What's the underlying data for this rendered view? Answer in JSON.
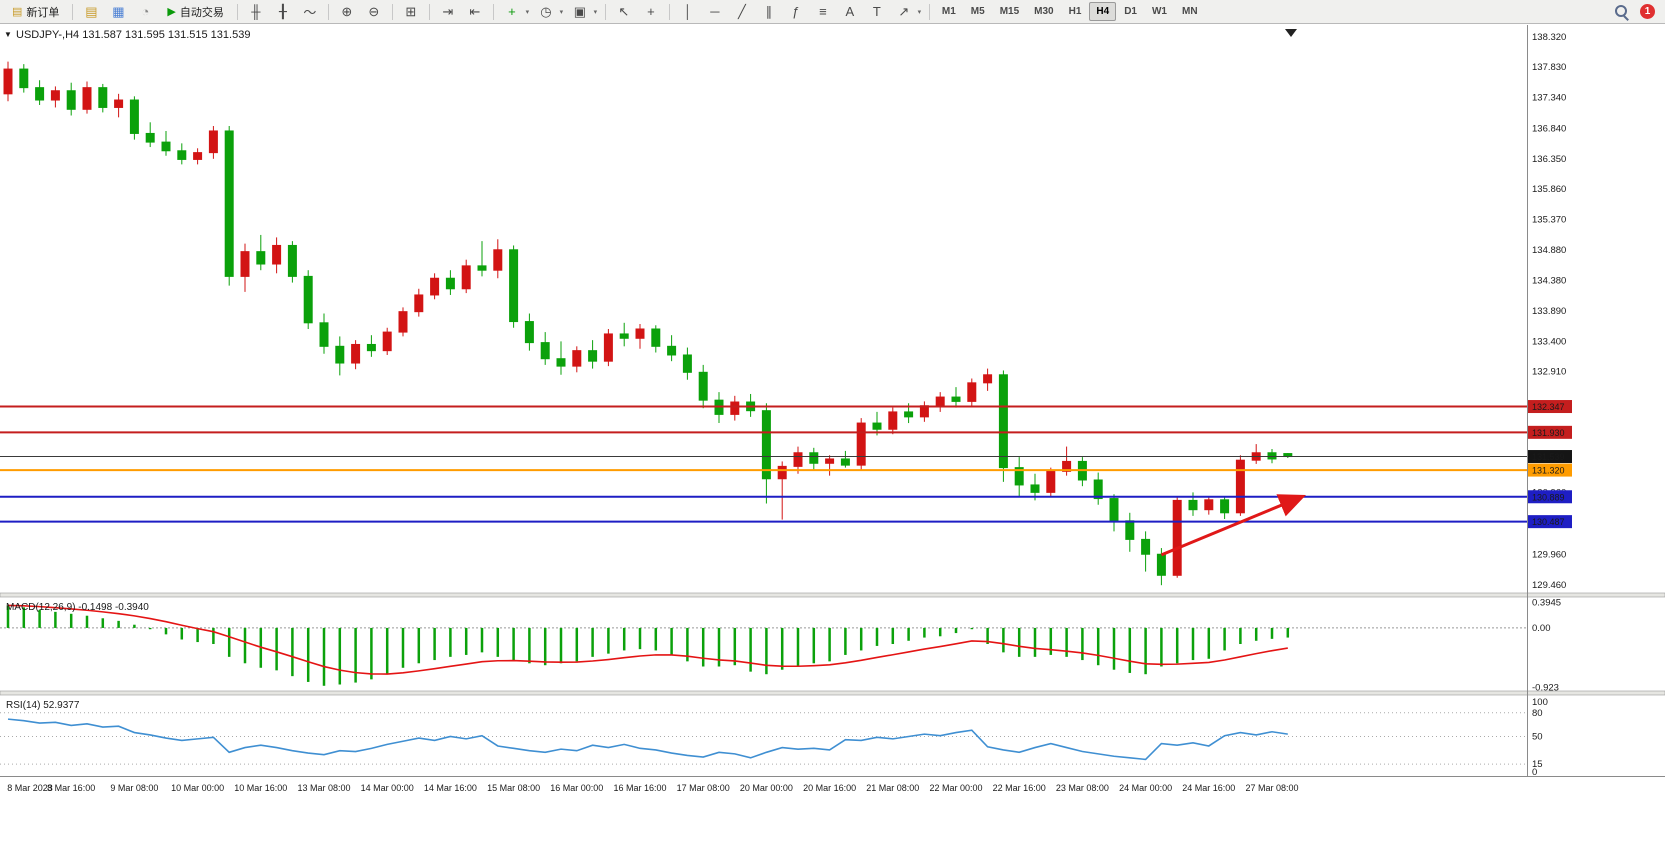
{
  "colors": {
    "bull": "#d21414",
    "bear": "#0ba10b",
    "macd_hist": "#0ba10b",
    "macd_signal": "#e41414",
    "rsi_line": "#3f8fd2",
    "resistance": "#c41e1e",
    "support": "#1e1ec4",
    "pivot": "#ff9c00",
    "current": "#3a3a3a"
  },
  "toolbar": {
    "new_order_label": "新订单",
    "autotrading_label": "自动交易",
    "timeframes": [
      "M1",
      "M5",
      "M15",
      "M30",
      "H1",
      "H4",
      "D1",
      "W1",
      "MN"
    ],
    "active_timeframe": "H4",
    "notification_count": "1",
    "items": [
      {
        "type": "button",
        "name": "new-order-button",
        "icon": "new-order-icon",
        "glyph": "▤",
        "glyphColor": "#c89b2a",
        "labelKey": "new_order_label"
      },
      {
        "type": "sep"
      },
      {
        "type": "icon",
        "name": "new-chart-icon",
        "glyph": "▤",
        "color": "#c89b2a"
      },
      {
        "type": "icon",
        "name": "profiles-icon",
        "glyph": "▦",
        "color": "#4a7fd4"
      },
      {
        "type": "icon",
        "name": "refresh-icon",
        "glyph": "◔",
        "color": "#8a8a8a"
      },
      {
        "type": "button",
        "name": "autotrading-button",
        "icon": "autotrading-play-icon",
        "glyph": "▶",
        "glyphColor": "#0a9a0a",
        "labelKey": "autotrading_label"
      },
      {
        "type": "sep"
      },
      {
        "type": "icon",
        "name": "bar-chart-icon",
        "glyph": "╫"
      },
      {
        "type": "icon",
        "name": "candlestick-chart-icon",
        "glyph": "╂"
      },
      {
        "type": "icon",
        "name": "line-chart-icon",
        "glyph": "～"
      },
      {
        "type": "sep"
      },
      {
        "type": "icon",
        "name": "zoom-in-icon",
        "glyph": "⊕"
      },
      {
        "type": "icon",
        "name": "zoom-out-icon",
        "glyph": "⊖"
      },
      {
        "type": "sep"
      },
      {
        "type": "icon",
        "name": "tile-windows-icon",
        "glyph": "⊞"
      },
      {
        "type": "sep"
      },
      {
        "type": "icon",
        "name": "auto-scroll-icon",
        "glyph": "⇥"
      },
      {
        "type": "icon",
        "name": "chart-shift-icon",
        "glyph": "⇤"
      },
      {
        "type": "sep"
      },
      {
        "type": "icon",
        "name": "indicators-icon",
        "glyph": "+",
        "color": "#0a9a0a",
        "dropdown": true
      },
      {
        "type": "icon",
        "name": "periods-icon",
        "glyph": "◷",
        "dropdown": true
      },
      {
        "type": "icon",
        "name": "templates-icon",
        "glyph": "▣",
        "dropdown": true
      },
      {
        "type": "sep"
      },
      {
        "type": "icon",
        "name": "cursor-icon",
        "glyph": "↖"
      },
      {
        "type": "icon",
        "name": "crosshair-icon",
        "glyph": "+"
      },
      {
        "type": "sep"
      },
      {
        "type": "icon",
        "name": "vertical-line-icon",
        "glyph": "│"
      },
      {
        "type": "icon",
        "name": "horizontal-line-icon",
        "glyph": "─"
      },
      {
        "type": "icon",
        "name": "trendline-icon",
        "glyph": "╱"
      },
      {
        "type": "icon",
        "name": "channel-icon",
        "glyph": "∥"
      },
      {
        "type": "icon",
        "name": "fibonacci-icon",
        "glyph": "ƒ"
      },
      {
        "type": "icon",
        "name": "shapes-icon",
        "glyph": "≡"
      },
      {
        "type": "icon",
        "name": "text-icon",
        "glyph": "A"
      },
      {
        "type": "icon",
        "name": "text-label-icon",
        "glyph": "T"
      },
      {
        "type": "icon",
        "name": "arrows-tool-icon",
        "glyph": "↗",
        "dropdown": true
      },
      {
        "type": "sep"
      },
      {
        "type": "tf-group"
      },
      {
        "type": "spacer"
      },
      {
        "type": "search",
        "name": "search-icon"
      },
      {
        "type": "badge",
        "name": "notification-badge",
        "labelKey": "notification_count"
      }
    ]
  },
  "chart_data": {
    "type": "candlestick",
    "symbol": "USDJPY-",
    "timeframe": "H4",
    "title_ohlc": "131.587 131.595 131.515 131.539",
    "ylim": [
      129.35,
      138.48
    ],
    "price_axis_labels": [
      "138.320",
      "137.830",
      "137.340",
      "136.840",
      "136.350",
      "135.860",
      "135.370",
      "134.880",
      "134.380",
      "133.890",
      "133.400",
      "132.910",
      "130.960",
      "129.960",
      "129.460"
    ],
    "time_labels": [
      "8 Mar 2023",
      "8 Mar 16:00",
      "9 Mar 08:00",
      "10 Mar 00:00",
      "10 Mar 16:00",
      "13 Mar 08:00",
      "14 Mar 00:00",
      "14 Mar 16:00",
      "15 Mar 08:00",
      "16 Mar 00:00",
      "16 Mar 16:00",
      "17 Mar 08:00",
      "20 Mar 00:00",
      "20 Mar 16:00",
      "21 Mar 08:00",
      "22 Mar 00:00",
      "22 Mar 16:00",
      "23 Mar 08:00",
      "24 Mar 00:00",
      "24 Mar 16:00",
      "27 Mar 08:00"
    ],
    "hlines": [
      {
        "name": "resistance-line-1",
        "price": 132.347,
        "label": "132.347",
        "colorKey": "resistance",
        "width": 2
      },
      {
        "name": "resistance-line-2",
        "price": 131.93,
        "label": "131.930",
        "colorKey": "resistance",
        "width": 2
      },
      {
        "name": "current-price-line",
        "price": 131.539,
        "label": "131.539",
        "colorKey": "current",
        "width": 1,
        "boxColor": "#151515"
      },
      {
        "name": "pivot-line",
        "price": 131.32,
        "label": "131.320",
        "colorKey": "pivot",
        "width": 2
      },
      {
        "name": "support-line-1",
        "price": 130.889,
        "label": "130.889",
        "colorKey": "support",
        "width": 2
      },
      {
        "name": "support-line-2",
        "price": 130.487,
        "label": "130.487",
        "colorKey": "support",
        "width": 2
      }
    ],
    "arrow": {
      "from_bar": 73,
      "from_price": 129.95,
      "to_bar": 81.8,
      "to_price": 130.88,
      "color": "#e01818"
    },
    "candles": [
      [
        137.4,
        137.92,
        137.28,
        137.8
      ],
      [
        137.8,
        137.88,
        137.42,
        137.5
      ],
      [
        137.5,
        137.62,
        137.22,
        137.3
      ],
      [
        137.3,
        137.52,
        137.18,
        137.45
      ],
      [
        137.45,
        137.58,
        137.05,
        137.15
      ],
      [
        137.15,
        137.6,
        137.08,
        137.5
      ],
      [
        137.5,
        137.56,
        137.1,
        137.18
      ],
      [
        137.18,
        137.4,
        137.02,
        137.3
      ],
      [
        137.3,
        137.36,
        136.66,
        136.76
      ],
      [
        136.76,
        136.94,
        136.54,
        136.62
      ],
      [
        136.62,
        136.8,
        136.4,
        136.48
      ],
      [
        136.48,
        136.6,
        136.26,
        136.34
      ],
      [
        136.34,
        136.52,
        136.26,
        136.45
      ],
      [
        136.45,
        136.88,
        136.35,
        136.8
      ],
      [
        136.8,
        136.88,
        134.3,
        134.45
      ],
      [
        134.45,
        134.98,
        134.2,
        134.85
      ],
      [
        134.85,
        135.12,
        134.55,
        134.65
      ],
      [
        134.65,
        135.08,
        134.5,
        134.95
      ],
      [
        134.95,
        135.02,
        134.35,
        134.45
      ],
      [
        134.45,
        134.55,
        133.6,
        133.7
      ],
      [
        133.7,
        133.85,
        133.2,
        133.32
      ],
      [
        133.32,
        133.48,
        132.85,
        133.05
      ],
      [
        133.05,
        133.42,
        132.95,
        133.35
      ],
      [
        133.35,
        133.5,
        133.15,
        133.25
      ],
      [
        133.25,
        133.62,
        133.18,
        133.55
      ],
      [
        133.55,
        133.95,
        133.48,
        133.88
      ],
      [
        133.88,
        134.25,
        133.8,
        134.15
      ],
      [
        134.15,
        134.5,
        134.08,
        134.42
      ],
      [
        134.42,
        134.55,
        134.15,
        134.25
      ],
      [
        134.25,
        134.72,
        134.18,
        134.62
      ],
      [
        134.62,
        135.02,
        134.45,
        134.55
      ],
      [
        134.55,
        135.05,
        134.42,
        134.88
      ],
      [
        134.88,
        134.95,
        133.62,
        133.72
      ],
      [
        133.72,
        133.85,
        133.25,
        133.38
      ],
      [
        133.38,
        133.55,
        133.02,
        133.12
      ],
      [
        133.12,
        133.4,
        132.86,
        133.0
      ],
      [
        133.0,
        133.32,
        132.9,
        133.25
      ],
      [
        133.25,
        133.42,
        132.96,
        133.08
      ],
      [
        133.08,
        133.6,
        133.0,
        133.52
      ],
      [
        133.52,
        133.7,
        133.32,
        133.45
      ],
      [
        133.45,
        133.68,
        133.28,
        133.6
      ],
      [
        133.6,
        133.66,
        133.22,
        133.32
      ],
      [
        133.32,
        133.5,
        133.08,
        133.18
      ],
      [
        133.18,
        133.3,
        132.78,
        132.9
      ],
      [
        132.9,
        133.02,
        132.32,
        132.45
      ],
      [
        132.45,
        132.58,
        132.08,
        132.22
      ],
      [
        132.22,
        132.52,
        132.12,
        132.42
      ],
      [
        132.42,
        132.55,
        132.18,
        132.28
      ],
      [
        132.28,
        132.4,
        130.78,
        131.18
      ],
      [
        131.18,
        131.46,
        130.52,
        131.38
      ],
      [
        131.38,
        131.7,
        131.26,
        131.6
      ],
      [
        131.6,
        131.68,
        131.33,
        131.43
      ],
      [
        131.43,
        131.56,
        131.23,
        131.5
      ],
      [
        131.5,
        131.63,
        131.36,
        131.4
      ],
      [
        131.4,
        132.16,
        131.33,
        132.08
      ],
      [
        132.08,
        132.26,
        131.88,
        131.98
      ],
      [
        131.98,
        132.33,
        131.9,
        132.26
      ],
      [
        132.26,
        132.4,
        132.08,
        132.18
      ],
      [
        132.18,
        132.43,
        132.1,
        132.36
      ],
      [
        132.36,
        132.58,
        132.26,
        132.5
      ],
      [
        132.5,
        132.66,
        132.33,
        132.43
      ],
      [
        132.43,
        132.8,
        132.36,
        132.73
      ],
      [
        132.73,
        132.96,
        132.6,
        132.86
      ],
      [
        132.86,
        132.93,
        131.13,
        131.36
      ],
      [
        131.36,
        131.53,
        130.9,
        131.08
      ],
      [
        131.08,
        131.26,
        130.83,
        130.96
      ],
      [
        130.96,
        131.36,
        130.9,
        131.3
      ],
      [
        131.3,
        131.7,
        131.23,
        131.46
      ],
      [
        131.46,
        131.53,
        131.06,
        131.16
      ],
      [
        131.16,
        131.28,
        130.76,
        130.86
      ],
      [
        130.86,
        130.93,
        130.33,
        130.5
      ],
      [
        130.5,
        130.63,
        130.0,
        130.2
      ],
      [
        130.2,
        130.33,
        129.68,
        129.96
      ],
      [
        129.96,
        130.06,
        129.46,
        129.62
      ],
      [
        129.62,
        130.9,
        129.58,
        130.83
      ],
      [
        130.83,
        130.96,
        130.58,
        130.68
      ],
      [
        130.68,
        130.9,
        130.6,
        130.84
      ],
      [
        130.84,
        130.88,
        130.53,
        130.63
      ],
      [
        130.63,
        131.56,
        130.58,
        131.48
      ],
      [
        131.48,
        131.74,
        131.42,
        131.6
      ],
      [
        131.6,
        131.66,
        131.43,
        131.5
      ],
      [
        131.587,
        131.595,
        131.515,
        131.539
      ]
    ],
    "indicators": {
      "macd": {
        "label": "MACD(12,26,9)",
        "value_main": "-0.1498",
        "value_signal": "-0.3940",
        "ylim": [
          -0.95,
          0.45
        ],
        "axis_labels": [
          {
            "value": 0.3945,
            "label": "0.3945"
          },
          {
            "value": 0,
            "label": "0.00"
          },
          {
            "value": -0.923,
            "label": "-0.923"
          }
        ],
        "values": [
          0.35,
          0.32,
          0.28,
          0.25,
          0.22,
          0.19,
          0.15,
          0.11,
          0.05,
          -0.02,
          -0.1,
          -0.18,
          -0.22,
          -0.25,
          -0.45,
          -0.55,
          -0.62,
          -0.66,
          -0.75,
          -0.84,
          -0.9,
          -0.88,
          -0.85,
          -0.8,
          -0.72,
          -0.62,
          -0.55,
          -0.5,
          -0.45,
          -0.42,
          -0.38,
          -0.45,
          -0.5,
          -0.55,
          -0.58,
          -0.55,
          -0.52,
          -0.45,
          -0.4,
          -0.35,
          -0.33,
          -0.35,
          -0.42,
          -0.52,
          -0.6,
          -0.6,
          -0.58,
          -0.68,
          -0.72,
          -0.65,
          -0.6,
          -0.55,
          -0.52,
          -0.42,
          -0.35,
          -0.28,
          -0.25,
          -0.2,
          -0.15,
          -0.13,
          -0.08,
          -0.02,
          -0.25,
          -0.38,
          -0.45,
          -0.45,
          -0.42,
          -0.45,
          -0.5,
          -0.58,
          -0.65,
          -0.7,
          -0.72,
          -0.6,
          -0.55,
          -0.5,
          -0.48,
          -0.35,
          -0.25,
          -0.2,
          -0.17,
          -0.15
        ]
      },
      "rsi": {
        "label": "RSI(14)",
        "value": "52.9377",
        "ylim": [
          0,
          100
        ],
        "levels": [
          80,
          50,
          15
        ],
        "axis_labels": [
          {
            "value": 100,
            "label": "100"
          },
          {
            "value": 80,
            "label": "80"
          },
          {
            "value": 50,
            "label": "50"
          },
          {
            "value": 15,
            "label": "15"
          },
          {
            "value": 0,
            "label": "0"
          }
        ],
        "values": [
          72,
          70,
          67,
          68,
          64,
          66,
          62,
          63,
          55,
          52,
          48,
          45,
          47,
          49,
          30,
          36,
          39,
          36,
          32,
          29,
          27,
          32,
          31,
          35,
          40,
          44,
          48,
          45,
          50,
          47,
          51,
          38,
          35,
          32,
          30,
          34,
          32,
          39,
          36,
          40,
          35,
          33,
          29,
          26,
          24,
          30,
          28,
          23,
          30,
          36,
          34,
          35,
          33,
          46,
          45,
          49,
          47,
          50,
          53,
          51,
          55,
          58,
          37,
          33,
          30,
          36,
          41,
          36,
          31,
          28,
          25,
          23,
          21,
          41,
          39,
          42,
          38,
          51,
          55,
          52,
          56,
          53
        ]
      }
    }
  }
}
